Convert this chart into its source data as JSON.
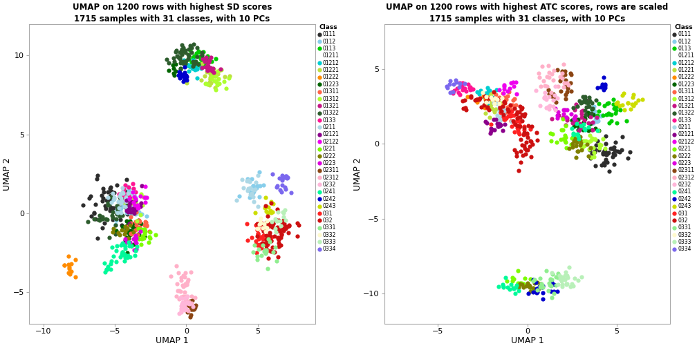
{
  "title1": "UMAP on 1200 rows with highest SD scores\n1715 samples with 31 classes, with 10 PCs",
  "title2": "UMAP on 1200 rows with highest ATC scores, rows are scaled\n1715 samples with 31 classes, with 10 PCs",
  "xlabel": "UMAP 1",
  "ylabel": "UMAP 2",
  "legend_title": "Class",
  "classes": [
    "0111",
    "0112",
    "0113",
    "01211",
    "01212",
    "01221",
    "01222",
    "01223",
    "01311",
    "01312",
    "01321",
    "01322",
    "0133",
    "0211",
    "02121",
    "02122",
    "0221",
    "0222",
    "0223",
    "02311",
    "02312",
    "0232",
    "0241",
    "0242",
    "0243",
    "031",
    "032",
    "0331",
    "0332",
    "0333",
    "0334"
  ],
  "colors": [
    "#2d2d2d",
    "#87ceeb",
    "#00cd00",
    "#ffffff",
    "#00ced1",
    "#bde040",
    "#ff8c00",
    "#006400",
    "#ff6347",
    "#adff2f",
    "#c71585",
    "#2d5c2d",
    "#ff1493",
    "#add8e6",
    "#8b008b",
    "#ee00ee",
    "#7cfc00",
    "#808000",
    "#dd00dd",
    "#8b4513",
    "#ffb0c8",
    "#ffb6d9",
    "#00fa9a",
    "#0000cd",
    "#ccdd00",
    "#ff2222",
    "#cc1010",
    "#90ee90",
    "#fffacd",
    "#b8f0b8",
    "#7b68ee"
  ],
  "plot1_xlim": [
    -11,
    9
  ],
  "plot1_ylim": [
    -7,
    12
  ],
  "plot2_xlim": [
    -8,
    8
  ],
  "plot2_ylim": [
    -12,
    8
  ],
  "plot1_xticks": [
    -10,
    -5,
    0,
    5
  ],
  "plot1_yticks": [
    -5,
    0,
    5,
    10
  ],
  "plot2_xticks": [
    -5,
    0,
    5
  ],
  "plot2_yticks": [
    -10,
    -5,
    0,
    5
  ],
  "point_size": 20,
  "alpha": 1.0,
  "bg_color": "#ffffff",
  "panel_bg": "#ffffff",
  "spine_color": "#aaaaaa",
  "tick_labelsize": 8,
  "axis_labelsize": 9,
  "title_fontsize": 8.5
}
